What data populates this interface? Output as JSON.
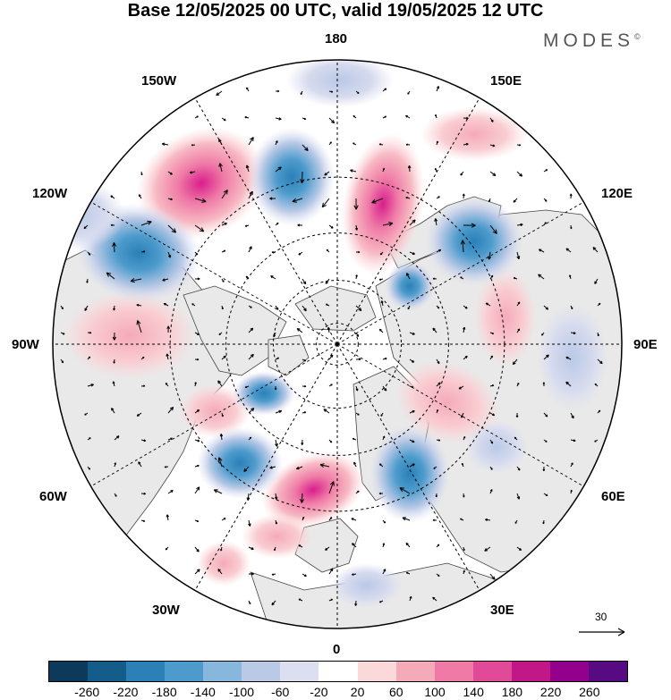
{
  "title": "Base 12/05/2025 00 UTC, valid 19/05/2025 12 UTC",
  "brand": {
    "text": "MODES",
    "mark": "©"
  },
  "longitude_labels": {
    "top": "180",
    "bottom": "0",
    "left": "90W",
    "right": "90E",
    "nw_upper": "150W",
    "nw_lower": "120W",
    "ne_upper": "150E",
    "ne_lower": "120E",
    "sw_upper": "60W",
    "sw_lower": "30W",
    "se_upper": "60E",
    "se_lower": "30E"
  },
  "reference_vector": {
    "value": "30"
  },
  "projection": "north-polar-stereographic",
  "graticule": {
    "lat_circles_deg": [
      20,
      40,
      60,
      80
    ],
    "meridian_step_deg": 30
  },
  "colorbar": {
    "labels": [
      "-260",
      "-220",
      "-180",
      "-140",
      "-100",
      "-60",
      "-20",
      "20",
      "60",
      "100",
      "140",
      "180",
      "220",
      "260"
    ],
    "colors": [
      "#0d3a5a",
      "#145c8a",
      "#2a80b7",
      "#4d9bcc",
      "#88b7dd",
      "#b9c9e6",
      "#dcdff0",
      "#ffffff",
      "#fbd8da",
      "#f5aab9",
      "#ef7aa6",
      "#e04a98",
      "#c21786",
      "#93008c",
      "#580a82"
    ]
  },
  "map_colors": {
    "land": "#e9e9e9",
    "grid": "#000000"
  }
}
